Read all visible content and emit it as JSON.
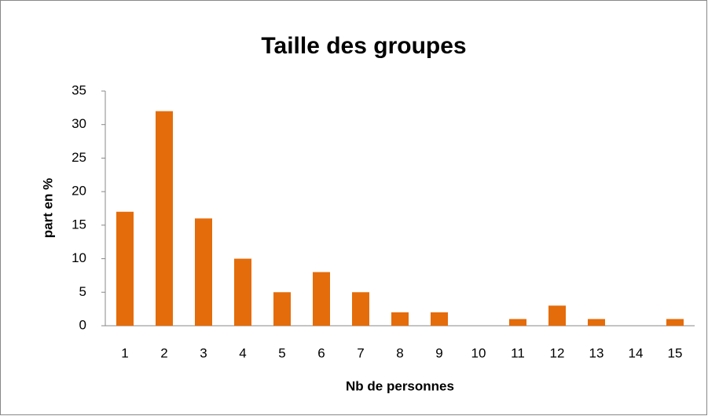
{
  "chart_data": {
    "type": "bar",
    "title": "Taille des groupes",
    "x_label": "Nb de personnes",
    "y_label": "part en %",
    "categories": [
      "1",
      "2",
      "3",
      "4",
      "5",
      "6",
      "7",
      "8",
      "9",
      "10",
      "11",
      "12",
      "13",
      "14",
      "15"
    ],
    "values": [
      17,
      32,
      16,
      10,
      5,
      8,
      5,
      2,
      2,
      0,
      1,
      3,
      1,
      0,
      1
    ],
    "color": "#e46c0a",
    "ylim": [
      0,
      35
    ],
    "yticks": [
      0,
      5,
      10,
      15,
      20,
      25,
      30,
      35
    ],
    "grid": false
  }
}
